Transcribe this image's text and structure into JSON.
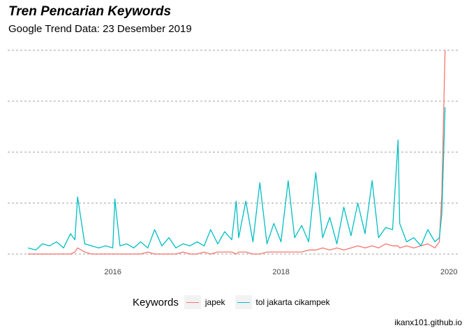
{
  "title": "Tren Pencarian Keywords",
  "subtitle": "Google Trend Data: 23 Desember 2019",
  "caption": "ikanx101.github.io",
  "legend": {
    "title": "Keywords",
    "items": [
      {
        "label": "japek",
        "color": "#F8766D"
      },
      {
        "label": "tol jakarta cikampek",
        "color": "#00BFC4"
      }
    ]
  },
  "chart_data": {
    "type": "line",
    "x_axis": {
      "ticks": [
        "2016",
        "2018",
        "2020"
      ],
      "range": [
        "2014-12-28",
        "2019-12-22"
      ]
    },
    "y_axis": {
      "range": [
        0,
        100
      ],
      "tick_labels_shown": false
    },
    "grid": "horizontal-dotted",
    "legend_position": "bottom",
    "x": [
      "2014-12-28",
      "2015-02-01",
      "2015-03-01",
      "2015-04-01",
      "2015-05-01",
      "2015-06-01",
      "2015-07-01",
      "2015-07-20",
      "2015-08-01",
      "2015-09-01",
      "2015-10-01",
      "2015-11-01",
      "2015-12-01",
      "2016-01-01",
      "2016-01-10",
      "2016-02-01",
      "2016-03-01",
      "2016-04-01",
      "2016-05-01",
      "2016-06-01",
      "2016-07-01",
      "2016-08-01",
      "2016-09-01",
      "2016-10-01",
      "2016-11-01",
      "2016-12-01",
      "2017-01-01",
      "2017-02-01",
      "2017-03-01",
      "2017-04-01",
      "2017-05-01",
      "2017-06-01",
      "2017-06-20",
      "2017-07-01",
      "2017-08-01",
      "2017-09-01",
      "2017-10-01",
      "2017-11-01",
      "2017-12-01",
      "2018-01-01",
      "2018-02-01",
      "2018-03-01",
      "2018-04-01",
      "2018-05-01",
      "2018-06-01",
      "2018-07-01",
      "2018-08-01",
      "2018-09-01",
      "2018-10-01",
      "2018-11-01",
      "2018-12-01",
      "2019-01-01",
      "2019-02-01",
      "2019-03-01",
      "2019-04-01",
      "2019-05-01",
      "2019-05-25",
      "2019-06-01",
      "2019-07-01",
      "2019-08-01",
      "2019-09-01",
      "2019-10-01",
      "2019-11-01",
      "2019-11-20",
      "2019-12-01",
      "2019-12-15"
    ],
    "series": [
      {
        "name": "japek",
        "values": [
          0,
          0,
          0,
          0,
          0,
          0,
          0,
          1,
          3,
          1,
          0,
          0,
          0,
          0,
          0,
          0,
          0,
          0,
          0,
          1,
          0,
          0,
          0,
          0,
          1,
          0,
          0,
          1,
          0,
          1,
          1,
          1,
          0,
          1,
          1,
          0,
          0,
          1,
          1,
          1,
          1,
          1,
          1,
          2,
          2,
          3,
          2,
          3,
          2,
          3,
          4,
          3,
          4,
          3,
          5,
          4,
          4,
          3,
          4,
          3,
          4,
          5,
          3,
          6,
          30,
          100
        ]
      },
      {
        "name": "tol jakarta cikampek",
        "values": [
          3,
          2,
          5,
          4,
          6,
          3,
          10,
          7,
          28,
          5,
          4,
          3,
          4,
          3,
          27,
          4,
          5,
          3,
          6,
          3,
          12,
          4,
          8,
          3,
          5,
          4,
          6,
          4,
          12,
          5,
          11,
          7,
          26,
          8,
          26,
          6,
          35,
          5,
          15,
          6,
          36,
          8,
          14,
          6,
          40,
          8,
          18,
          5,
          23,
          9,
          25,
          10,
          36,
          8,
          13,
          12,
          56,
          15,
          6,
          8,
          4,
          12,
          6,
          8,
          20,
          72
        ]
      }
    ]
  }
}
